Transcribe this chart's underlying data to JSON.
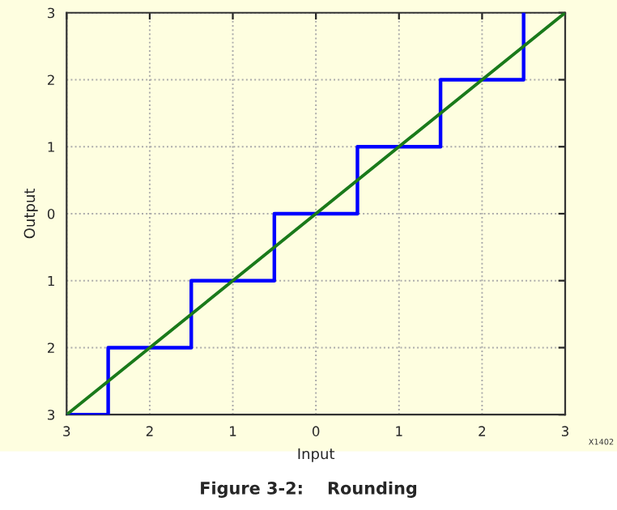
{
  "chart_data": {
    "type": "step",
    "xlabel": "Input",
    "ylabel": "Output",
    "series": [
      {
        "color": "#0000ff",
        "x": [
          -3,
          -2.5,
          -1.5,
          -0.5,
          0.5,
          1.5,
          2.5
        ],
        "values": [
          -3,
          -2,
          -1,
          0,
          1,
          2,
          3
        ]
      },
      {
        "type": "line",
        "color": "#1a7a1a",
        "x": [
          -3,
          3
        ],
        "values": [
          -3,
          3
        ]
      }
    ],
    "xlim": [
      -3,
      3
    ],
    "ylim": [
      -3,
      3
    ],
    "xticks": [
      {
        "value": -3,
        "label": "3"
      },
      {
        "value": -2,
        "label": "2"
      },
      {
        "value": -1,
        "label": "1"
      },
      0,
      1,
      2,
      3
    ],
    "yticks": [
      {
        "value": -3,
        "label": "3"
      },
      {
        "value": -2,
        "label": "2"
      },
      {
        "value": -1,
        "label": "1"
      },
      0,
      1,
      2,
      3
    ],
    "grid": true,
    "line_style": "solid",
    "marker": "none",
    "annotations": [
      "X1402",
      "Figure 3-2:    Rounding"
    ]
  }
}
